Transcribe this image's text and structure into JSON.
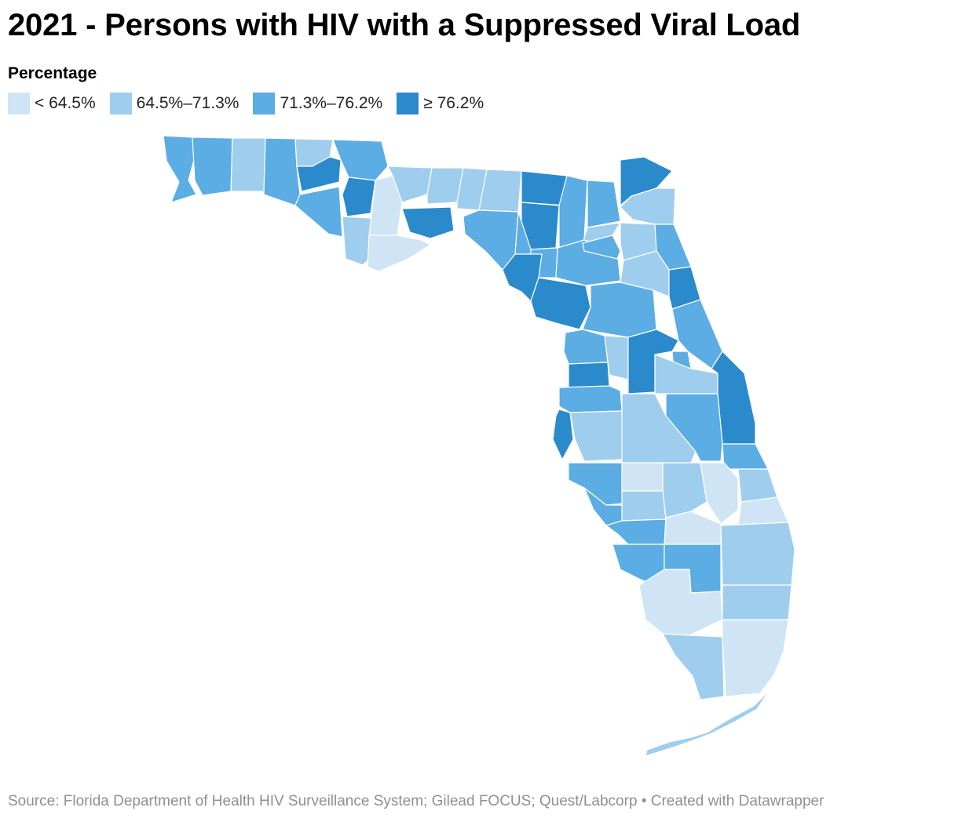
{
  "title": "2021 - Persons with HIV with a Suppressed Viral Load",
  "legend": {
    "title": "Percentage",
    "items": [
      {
        "label": "< 64.5%",
        "color": "#cfe5f6"
      },
      {
        "label": "64.5%–71.3%",
        "color": "#9fcdee"
      },
      {
        "label": "71.3%–76.2%",
        "color": "#5badE3"
      },
      {
        "label": "≥ 76.2%",
        "color": "#2a8acb"
      }
    ]
  },
  "source": "Source: Florida Department of Health HIV Surveillance System; Gilead FOCUS; Quest/Labcorp • Created with Datawrapper"
}
